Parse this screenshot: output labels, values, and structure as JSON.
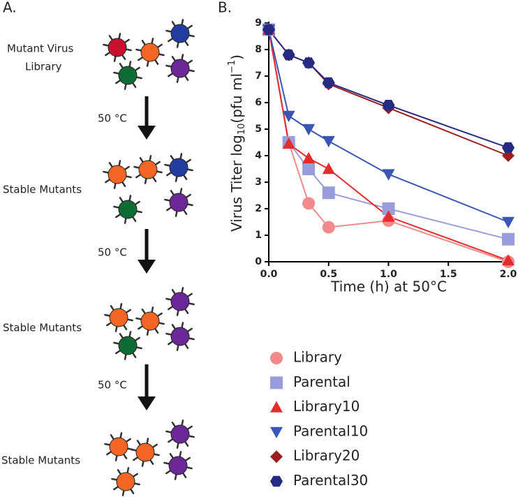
{
  "diagram": {
    "label": "A.",
    "start": [
      "Mutant Virus",
      "Library"
    ],
    "temperatures": [
      "50 °C",
      "50 °C",
      "50 °C"
    ],
    "stages": [
      "Stable Mutants",
      "Stable Mutants",
      "Stable Mutants"
    ]
  },
  "chart_data": {
    "type": "line",
    "panel_label": "B.",
    "y_label": [
      "Virus Titer log",
      "10",
      "(pfu ml",
      "−1",
      ")"
    ],
    "x_label": "Time (h) at 50°C",
    "x": [
      0,
      0.167,
      0.333,
      0.5,
      1,
      2
    ],
    "xlim": [
      0,
      2
    ],
    "ylim": [
      0,
      9
    ],
    "xticks": [
      {
        "value": 0,
        "label": "0.0"
      },
      {
        "value": 0.5,
        "label": "0.5"
      },
      {
        "value": 1,
        "label": "1.0"
      },
      {
        "value": 1.5,
        "label": "1.5"
      },
      {
        "value": 2,
        "label": "2.0"
      }
    ],
    "yticks": [
      0,
      1,
      2,
      3,
      4,
      5,
      6,
      7,
      8,
      9
    ],
    "series": [
      {
        "name": "Library",
        "color": "#f08a8c",
        "marker": "circle",
        "values": [
          8.75,
          4.5,
          2.2,
          1.3,
          1.55,
          0.0
        ]
      },
      {
        "name": "Parental",
        "color": "#9a9cdc",
        "marker": "square",
        "values": [
          8.75,
          4.5,
          3.5,
          2.6,
          2.0,
          0.85
        ]
      },
      {
        "name": "Library10",
        "color": "#e52b2b",
        "marker": "triangle",
        "values": [
          8.75,
          4.45,
          3.9,
          3.5,
          1.7,
          0.05
        ]
      },
      {
        "name": "Parental10",
        "color": "#3a55b4",
        "marker": "triangle-down",
        "values": [
          8.75,
          5.5,
          5.0,
          4.55,
          3.3,
          1.5
        ]
      },
      {
        "name": "Library20",
        "color": "#9b1d1d",
        "marker": "diamond",
        "values": [
          8.75,
          7.8,
          7.5,
          6.7,
          5.8,
          4.0
        ]
      },
      {
        "name": "Parental30",
        "color": "#262a80",
        "marker": "hexagon",
        "values": [
          8.75,
          7.8,
          7.5,
          6.75,
          5.9,
          4.3
        ]
      }
    ]
  }
}
